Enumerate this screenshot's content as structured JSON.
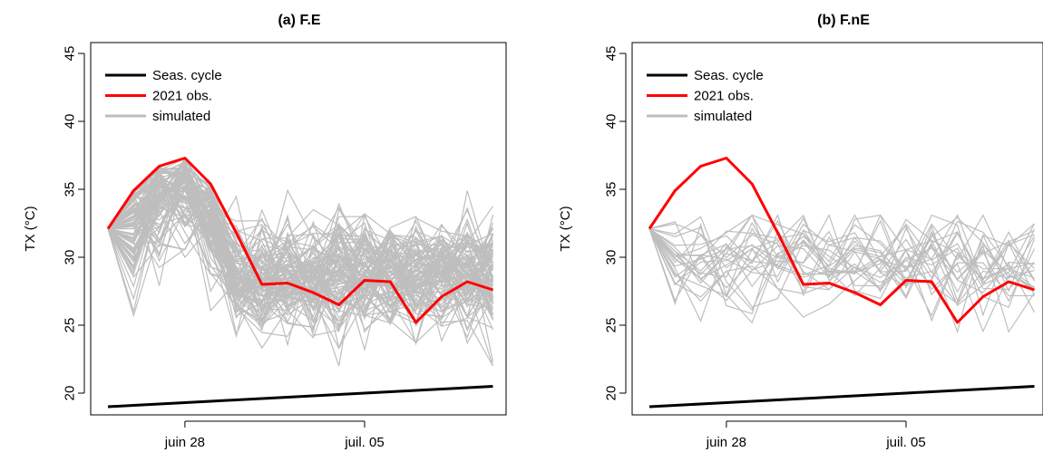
{
  "chart_data": [
    {
      "type": "line",
      "title": "(a) F.E",
      "ylabel": "TX (°C)",
      "xlabel": "",
      "x_dates": [
        "2021-06-25",
        "2021-06-26",
        "2021-06-27",
        "2021-06-28",
        "2021-06-29",
        "2021-06-30",
        "2021-07-01",
        "2021-07-02",
        "2021-07-03",
        "2021-07-04",
        "2021-07-05",
        "2021-07-06",
        "2021-07-07",
        "2021-07-08",
        "2021-07-09",
        "2021-07-10"
      ],
      "x_ticks": [
        {
          "date": "2021-06-28",
          "label": "juin 28"
        },
        {
          "date": "2021-07-05",
          "label": "juil. 05"
        }
      ],
      "y_ticks": [
        20,
        25,
        30,
        35,
        40,
        45
      ],
      "ylim": [
        18.4,
        45.8
      ],
      "legend": {
        "position": "top-left",
        "entries": [
          {
            "label": "Seas. cycle",
            "color": "#000000"
          },
          {
            "label": "2021 obs.",
            "color": "#ff0000"
          },
          {
            "label": "simulated",
            "color": "#bebebe"
          }
        ]
      },
      "series": [
        {
          "name": "Seas. cycle",
          "color": "#000000",
          "values": [
            19.0,
            19.1,
            19.2,
            19.3,
            19.4,
            19.5,
            19.6,
            19.7,
            19.8,
            19.9,
            20.0,
            20.1,
            20.2,
            20.3,
            20.4,
            20.5
          ]
        },
        {
          "name": "2021 obs.",
          "color": "#ff0000",
          "values": [
            32.1,
            34.9,
            36.7,
            37.3,
            35.4,
            31.8,
            28.0,
            28.1,
            27.4,
            26.5,
            28.3,
            28.2,
            25.2,
            27.1,
            28.2,
            27.6
          ]
        }
      ],
      "simulated": {
        "name": "simulated",
        "color": "#bebebe",
        "count": 100,
        "range": [
          22.0,
          37.3
        ]
      }
    },
    {
      "type": "line",
      "title": "(b) F.nE",
      "ylabel": "TX (°C)",
      "xlabel": "",
      "x_dates": [
        "2021-06-25",
        "2021-06-26",
        "2021-06-27",
        "2021-06-28",
        "2021-06-29",
        "2021-06-30",
        "2021-07-01",
        "2021-07-02",
        "2021-07-03",
        "2021-07-04",
        "2021-07-05",
        "2021-07-06",
        "2021-07-07",
        "2021-07-08",
        "2021-07-09",
        "2021-07-10"
      ],
      "x_ticks": [
        {
          "date": "2021-06-28",
          "label": "juin 28"
        },
        {
          "date": "2021-07-05",
          "label": "juil. 05"
        }
      ],
      "y_ticks": [
        20,
        25,
        30,
        35,
        40,
        45
      ],
      "ylim": [
        18.4,
        45.8
      ],
      "legend": {
        "position": "top-left",
        "entries": [
          {
            "label": "Seas. cycle",
            "color": "#000000"
          },
          {
            "label": "2021 obs.",
            "color": "#ff0000"
          },
          {
            "label": "simulated",
            "color": "#bebebe"
          }
        ]
      },
      "series": [
        {
          "name": "Seas. cycle",
          "color": "#000000",
          "values": [
            19.0,
            19.1,
            19.2,
            19.3,
            19.4,
            19.5,
            19.6,
            19.7,
            19.8,
            19.9,
            20.0,
            20.1,
            20.2,
            20.3,
            20.4,
            20.5
          ]
        },
        {
          "name": "2021 obs.",
          "color": "#ff0000",
          "values": [
            32.1,
            34.9,
            36.7,
            37.3,
            35.4,
            31.8,
            28.0,
            28.1,
            27.4,
            26.5,
            28.3,
            28.2,
            25.2,
            27.1,
            28.2,
            27.6
          ]
        }
      ],
      "simulated": {
        "name": "simulated",
        "color": "#bebebe",
        "count": 25,
        "range": [
          22.9,
          33.1
        ]
      }
    }
  ]
}
